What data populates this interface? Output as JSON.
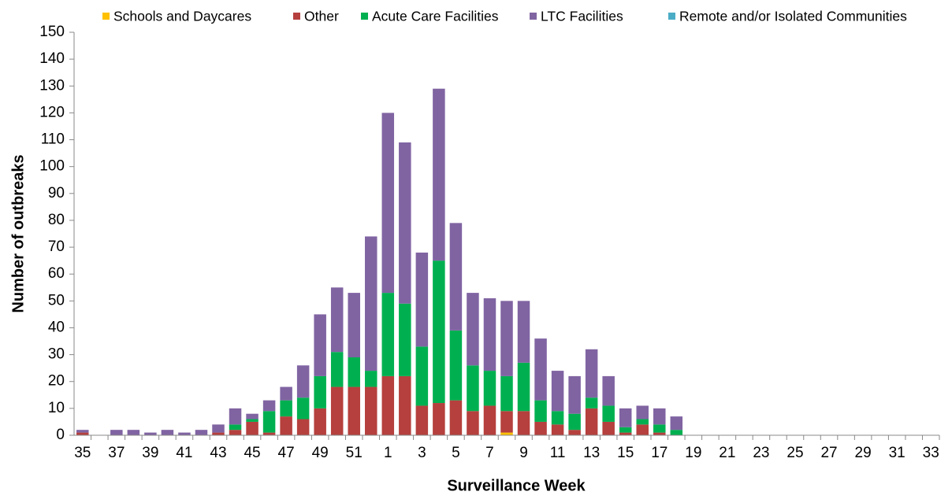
{
  "chart_data": {
    "type": "stacked_bar",
    "x_label": "Surveillance Week",
    "y_label": "Number of outbreaks",
    "categories": [
      "35",
      null,
      "37",
      null,
      "39",
      null,
      "41",
      null,
      "43",
      null,
      "45",
      null,
      "47",
      null,
      "49",
      null,
      "51",
      null,
      "1",
      null,
      "3",
      null,
      "5",
      null,
      "7",
      null,
      "9",
      null,
      "11",
      null,
      "13",
      null,
      "15",
      null,
      "17",
      null,
      "19",
      null,
      "21",
      null,
      "23",
      null,
      "25",
      null,
      "27",
      null,
      "29",
      null,
      "31",
      null,
      "33"
    ],
    "series": [
      {
        "name": "Schools and Daycares",
        "color": "#ffc000",
        "values": [
          0,
          0,
          0,
          0,
          0,
          0,
          0,
          0,
          0,
          0,
          0,
          0,
          0,
          0,
          0,
          0,
          0,
          0,
          0,
          0,
          0,
          0,
          0,
          0,
          0,
          1,
          0,
          0,
          0,
          0,
          0,
          0,
          0,
          0,
          0,
          0,
          0,
          0,
          0,
          0,
          0,
          0,
          0,
          0,
          0,
          0,
          0,
          0,
          0,
          0,
          0
        ]
      },
      {
        "name": "Other",
        "color": "#b5403d",
        "values": [
          1,
          0,
          0,
          0,
          0,
          0,
          0,
          0,
          1,
          2,
          5,
          1,
          7,
          6,
          10,
          18,
          18,
          18,
          22,
          22,
          11,
          12,
          13,
          9,
          11,
          8,
          9,
          5,
          4,
          2,
          10,
          5,
          1,
          4,
          1,
          0,
          0,
          0,
          0,
          0,
          0,
          0,
          0,
          0,
          0,
          0,
          0,
          0,
          0,
          0,
          0
        ]
      },
      {
        "name": "Acute Care Facilities",
        "color": "#00b050",
        "values": [
          0,
          0,
          0,
          0,
          0,
          0,
          0,
          0,
          0,
          2,
          1,
          8,
          6,
          8,
          12,
          13,
          11,
          6,
          31,
          27,
          22,
          53,
          26,
          17,
          13,
          13,
          18,
          8,
          5,
          6,
          4,
          6,
          2,
          2,
          3,
          2,
          0,
          0,
          0,
          0,
          0,
          0,
          0,
          0,
          0,
          0,
          0,
          0,
          0,
          0,
          0
        ]
      },
      {
        "name": "LTC Facilities",
        "color": "#8064a2",
        "values": [
          1,
          0,
          2,
          2,
          1,
          2,
          1,
          2,
          3,
          6,
          2,
          4,
          5,
          12,
          23,
          24,
          24,
          50,
          67,
          60,
          35,
          64,
          40,
          27,
          27,
          28,
          23,
          23,
          15,
          14,
          18,
          11,
          7,
          5,
          6,
          5,
          0,
          0,
          0,
          0,
          0,
          0,
          0,
          0,
          0,
          0,
          0,
          0,
          0,
          0,
          0
        ]
      },
      {
        "name": "Remote and/or Isolated Communities",
        "color": "#4bacc6",
        "values": [
          0,
          0,
          0,
          0,
          0,
          0,
          0,
          0,
          0,
          0,
          0,
          0,
          0,
          0,
          0,
          0,
          0,
          0,
          0,
          0,
          0,
          0,
          0,
          0,
          0,
          0,
          0,
          0,
          0,
          0,
          0,
          0,
          0,
          0,
          0,
          0,
          0,
          0,
          0,
          0,
          0,
          0,
          0,
          0,
          0,
          0,
          0,
          0,
          0,
          0,
          0
        ]
      }
    ],
    "ylim": [
      0,
      150
    ],
    "yticks": [
      0,
      10,
      20,
      30,
      40,
      50,
      60,
      70,
      80,
      90,
      100,
      110,
      120,
      130,
      140,
      150
    ],
    "grid": false,
    "legend": "top"
  }
}
